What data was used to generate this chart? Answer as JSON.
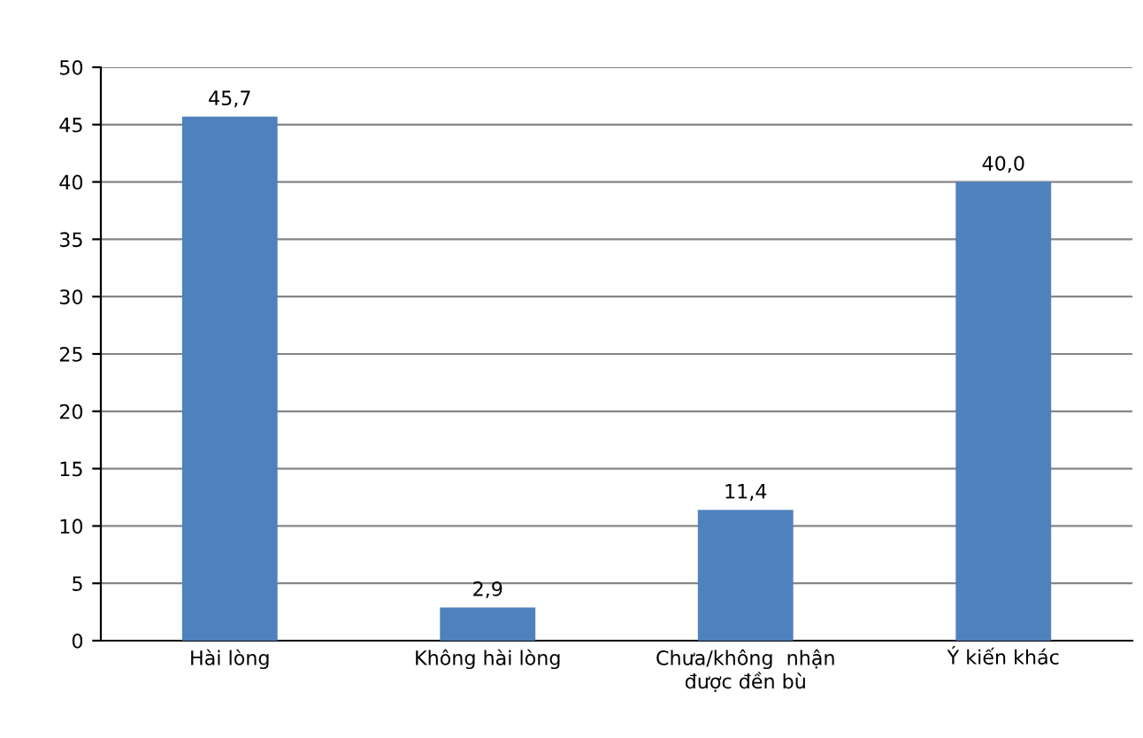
{
  "chart_data": {
    "type": "bar",
    "categories": [
      "Hài lòng",
      "Không hài lòng",
      "Chưa/không  nhận\nđược đền bù",
      "Ý kiến khác"
    ],
    "values": [
      45.7,
      2.9,
      11.4,
      40.0
    ],
    "value_labels": [
      "45,7",
      "2,9",
      "11,4",
      "40,0"
    ],
    "color": "#4f81bd",
    "ylim": [
      0,
      50
    ],
    "yticks": [
      0,
      5,
      10,
      15,
      20,
      25,
      30,
      35,
      40,
      45,
      50
    ],
    "grid": "y",
    "legend": false
  }
}
